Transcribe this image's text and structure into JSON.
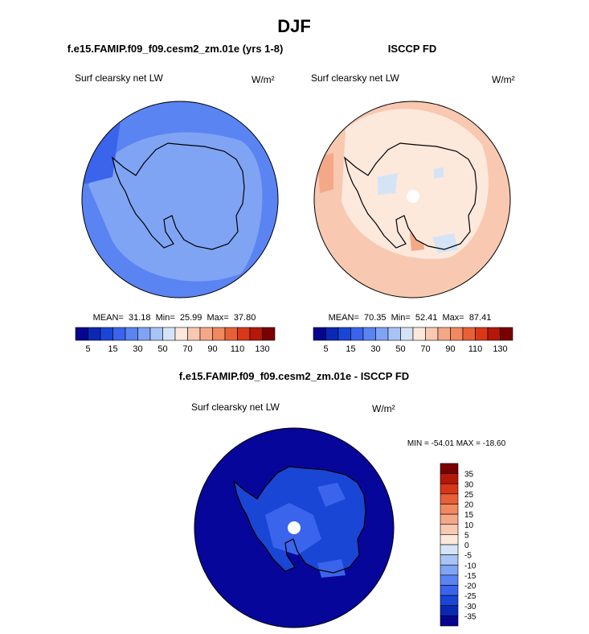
{
  "title": "DJF",
  "panels": [
    {
      "title": "f.e15.FAMIP.f09_f09.cesm2_zm.01e (yrs 1-8)",
      "left_label": "Surf clearsky net LW",
      "units": "W/m²",
      "stats": "MEAN=  31.18  Min=  25.99  Max=  37.80"
    },
    {
      "title": "ISCCP FD",
      "left_label": "Surf clearsky net LW",
      "units": "W/m²",
      "stats": "MEAN=  70.35  Min=  52.41  Max=  87.41"
    },
    {
      "title": "f.e15.FAMIP.f09_f09.cesm2_zm.01e - ISCCP FD",
      "left_label": "Surf clearsky net LW",
      "units": "W/m²",
      "stats": "MIN = -54.01 MAX = -18.60"
    }
  ],
  "colorbar": {
    "labels": [
      "5",
      "15",
      "30",
      "50",
      "70",
      "90",
      "110",
      "130"
    ],
    "colors": [
      "#05058e",
      "#0a28b4",
      "#1a46d6",
      "#3a64ec",
      "#5a84f2",
      "#80a4f4",
      "#a8c4f6",
      "#d4e4f6",
      "#fde8dc",
      "#f8c8b0",
      "#f4a888",
      "#f08860",
      "#e86038",
      "#d83818",
      "#b41808",
      "#7a0000"
    ]
  },
  "diff_colorbar": {
    "labels": [
      "35",
      "30",
      "25",
      "20",
      "15",
      "10",
      "5",
      "0",
      "-5",
      "-10",
      "-15",
      "-20",
      "-25",
      "-30",
      "-35"
    ],
    "colors": [
      "#7a0000",
      "#b41808",
      "#d83818",
      "#e86038",
      "#f08860",
      "#f4a888",
      "#f8c8b0",
      "#fde8dc",
      "#d4e4f6",
      "#a8c4f6",
      "#80a4f4",
      "#5a84f2",
      "#3a64ec",
      "#1a46d6",
      "#0a28b4",
      "#05058e"
    ]
  }
}
